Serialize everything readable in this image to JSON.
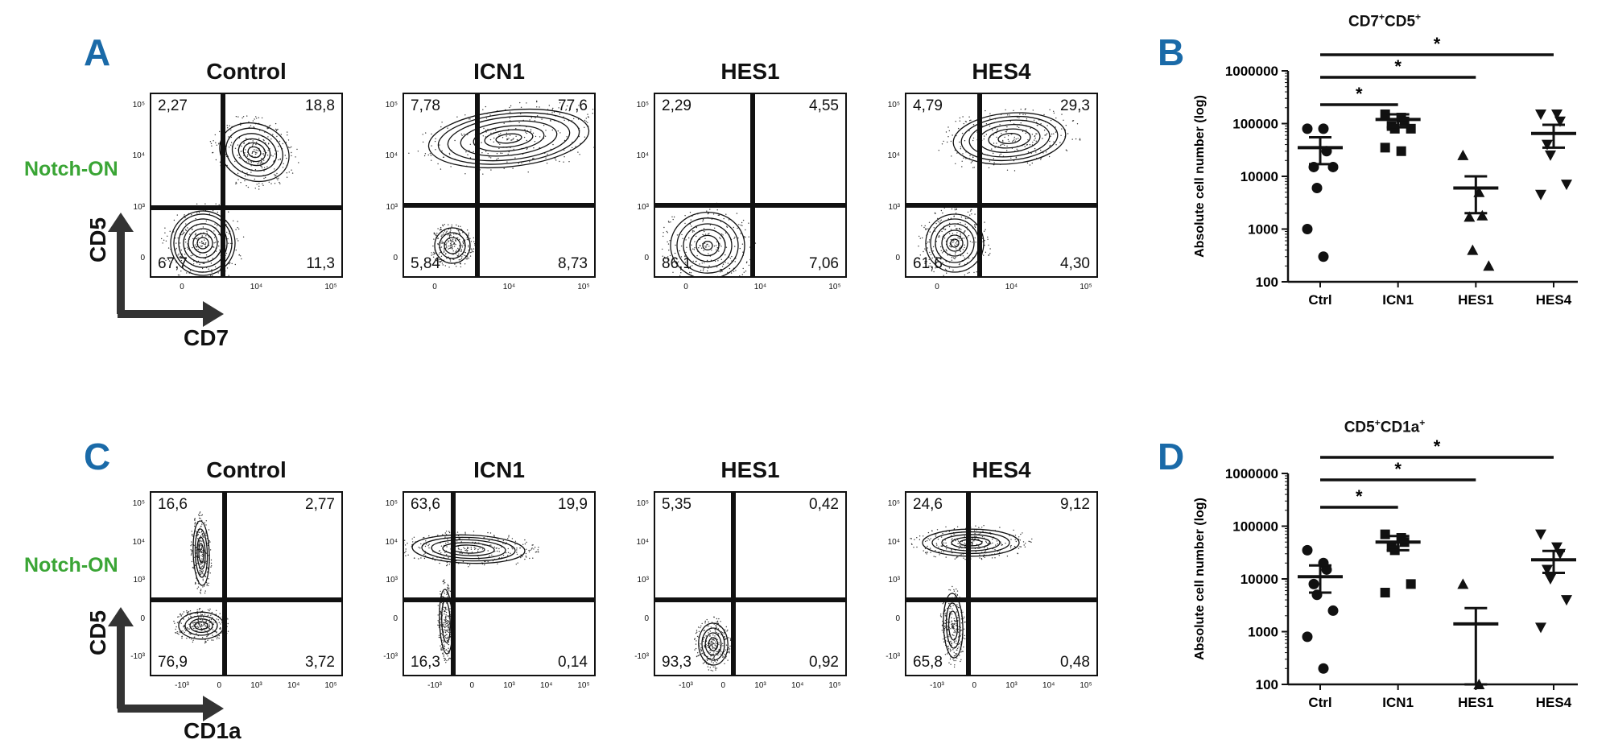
{
  "panel_letters": {
    "A": "A",
    "B": "B",
    "C": "C",
    "D": "D"
  },
  "row_label": "Notch-ON",
  "facs_rows": [
    {
      "y_axis": "CD5",
      "x_axis": "CD7",
      "x_ticks": [
        "0",
        "10⁴",
        "10⁵"
      ],
      "y_ticks": [
        "10⁵",
        "10⁴",
        "10³",
        "0"
      ],
      "plots": [
        {
          "title": "Control",
          "quadrants": [
            "2,27",
            "18,8",
            "67,7",
            "11,3"
          ]
        },
        {
          "title": "ICN1",
          "quadrants": [
            "7,78",
            "77,6",
            "5,84",
            "8,73"
          ]
        },
        {
          "title": "HES1",
          "quadrants": [
            "2,29",
            "4,55",
            "86,1",
            "7,06"
          ]
        },
        {
          "title": "HES4",
          "quadrants": [
            "4,79",
            "29,3",
            "61,6",
            "4,30"
          ]
        }
      ]
    },
    {
      "y_axis": "CD5",
      "x_axis": "CD1a",
      "x_ticks": [
        "-10³",
        "0",
        "10³",
        "10⁴",
        "10⁵"
      ],
      "y_ticks": [
        "10⁵",
        "10⁴",
        "10³",
        "0",
        "-10³"
      ],
      "plots": [
        {
          "title": "Control",
          "quadrants": [
            "16,6",
            "2,77",
            "76,9",
            "3,72"
          ]
        },
        {
          "title": "ICN1",
          "quadrants": [
            "63,6",
            "19,9",
            "16,3",
            "0,14"
          ]
        },
        {
          "title": "HES1",
          "quadrants": [
            "5,35",
            "0,42",
            "93,3",
            "0,92"
          ]
        },
        {
          "title": "HES4",
          "quadrants": [
            "24,6",
            "9,12",
            "65,8",
            "0,48"
          ]
        }
      ]
    }
  ],
  "chart_data": [
    {
      "type": "scatter",
      "title_parts": [
        "CD7",
        "+",
        "CD5",
        "+"
      ],
      "categories": [
        "Ctrl",
        "ICN1",
        "HES1",
        "HES4"
      ],
      "markers": [
        "circle",
        "square",
        "triangle-up",
        "triangle-down"
      ],
      "ylabel": "Absolute cell number (log)",
      "yscale": "log",
      "ylim": [
        100,
        1000000
      ],
      "yticks": [
        "100",
        "1000",
        "10000",
        "100000",
        "1000000"
      ],
      "points": [
        [
          80000,
          80000,
          30000,
          15000,
          6000,
          15000,
          1000,
          300
        ],
        [
          150000,
          130000,
          110000,
          90000,
          80000,
          80000,
          35000,
          30000
        ],
        [
          25000,
          5000,
          1800,
          1700,
          400,
          200
        ],
        [
          150000,
          150000,
          110000,
          40000,
          25000,
          7000,
          4500
        ]
      ],
      "mean": [
        35000,
        120000,
        6000,
        65000
      ],
      "sem_low": [
        17000,
        85000,
        2000,
        35000
      ],
      "sem_high": [
        55000,
        150000,
        10000,
        95000
      ],
      "significance": [
        {
          "from": "Ctrl",
          "to": "ICN1",
          "label": "*"
        },
        {
          "from": "Ctrl",
          "to": "HES1",
          "label": "*"
        },
        {
          "from": "Ctrl",
          "to": "HES4",
          "label": "*"
        }
      ]
    },
    {
      "type": "scatter",
      "title_parts": [
        "CD5",
        "+",
        "CD1a",
        "+"
      ],
      "categories": [
        "Ctrl",
        "ICN1",
        "HES1",
        "HES4"
      ],
      "markers": [
        "circle",
        "square",
        "triangle-up",
        "triangle-down"
      ],
      "ylabel": "Absolute cell number (log)",
      "yscale": "log",
      "ylim": [
        100,
        1000000
      ],
      "yticks": [
        "100",
        "1000",
        "10000",
        "100000",
        "1000000"
      ],
      "points": [
        [
          35000,
          20000,
          15000,
          8000,
          5000,
          2500,
          800,
          200
        ],
        [
          70000,
          60000,
          50000,
          40000,
          35000,
          8000,
          5500
        ],
        [
          8000,
          100
        ],
        [
          70000,
          40000,
          30000,
          15000,
          10000,
          4000,
          1200
        ]
      ],
      "mean": [
        11000,
        50000,
        1400,
        23000
      ],
      "sem_low": [
        5500,
        35000,
        100,
        13000
      ],
      "sem_high": [
        18000,
        65000,
        2800,
        34000
      ],
      "significance": [
        {
          "from": "Ctrl",
          "to": "ICN1",
          "label": "*"
        },
        {
          "from": "Ctrl",
          "to": "HES1",
          "label": "*"
        },
        {
          "from": "Ctrl",
          "to": "HES4",
          "label": "*"
        }
      ]
    }
  ]
}
